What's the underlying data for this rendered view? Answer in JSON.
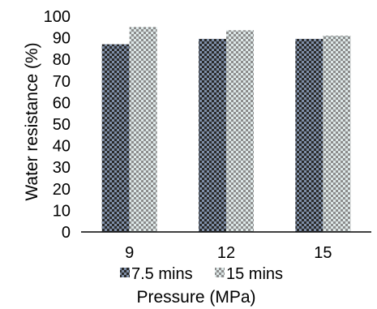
{
  "chart_data": {
    "type": "bar",
    "title": "",
    "categories": [
      "9",
      "12",
      "15"
    ],
    "series": [
      {
        "name": "7.5 mins",
        "values": [
          87,
          89.5,
          89.5
        ],
        "pattern": "dense-check"
      },
      {
        "name": "15 mins",
        "values": [
          95,
          93.5,
          91
        ],
        "pattern": "light-check"
      }
    ],
    "xlabel": "Pressure (MPa)",
    "ylabel": "Water resistance (%)",
    "ylim": [
      0,
      100
    ],
    "yticks": [
      0,
      10,
      20,
      30,
      40,
      50,
      60,
      70,
      80,
      90,
      100
    ],
    "grid": false,
    "legend": "bottom",
    "colors": {
      "series_1_dark": "#2a2a2a",
      "series_1_light": "#7f8fa8",
      "series_2_dark": "#8c8c8c",
      "series_2_light": "#dde8e8",
      "axis": "#000000",
      "text": "#000000"
    }
  }
}
